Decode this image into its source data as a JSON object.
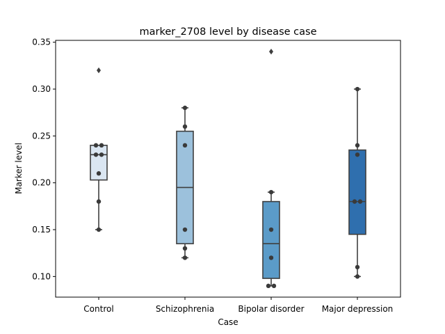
{
  "chart_data": {
    "type": "box",
    "title": "marker_2708 level by disease case",
    "xlabel": "Case",
    "ylabel": "Marker level",
    "ylim": [
      0.078,
      0.352
    ],
    "yticks": [
      0.1,
      0.15,
      0.2,
      0.25,
      0.3,
      0.35
    ],
    "ytick_labels": [
      "0.10",
      "0.15",
      "0.20",
      "0.25",
      "0.30",
      "0.35"
    ],
    "grid": false,
    "categories": [
      "Control",
      "Schizophrenia",
      "Bipolar disorder",
      "Major depression"
    ],
    "box_colors": [
      "#dae6f2",
      "#9cc1dc",
      "#5b9bc8",
      "#2f6fae"
    ],
    "stroke_color": "#3f3f3f",
    "boxes": [
      {
        "category": "Control",
        "whisker_low": 0.15,
        "q1": 0.203,
        "median": 0.23,
        "q3": 0.24,
        "whisker_high": 0.24,
        "outliers": [
          0.32
        ],
        "points": [
          0.15,
          0.18,
          0.21,
          0.23,
          0.23,
          0.24,
          0.24
        ]
      },
      {
        "category": "Schizophrenia",
        "whisker_low": 0.12,
        "q1": 0.135,
        "median": 0.195,
        "q3": 0.255,
        "whisker_high": 0.28,
        "outliers": [],
        "points": [
          0.12,
          0.13,
          0.15,
          0.24,
          0.26,
          0.28
        ]
      },
      {
        "category": "Bipolar disorder",
        "whisker_low": 0.09,
        "q1": 0.098,
        "median": 0.135,
        "q3": 0.18,
        "whisker_high": 0.19,
        "outliers": [
          0.34
        ],
        "points": [
          0.09,
          0.09,
          0.12,
          0.15,
          0.19
        ]
      },
      {
        "category": "Major depression",
        "whisker_low": 0.1,
        "q1": 0.145,
        "median": 0.18,
        "q3": 0.235,
        "whisker_high": 0.3,
        "outliers": [],
        "points": [
          0.1,
          0.11,
          0.18,
          0.18,
          0.23,
          0.24,
          0.3
        ]
      }
    ]
  }
}
